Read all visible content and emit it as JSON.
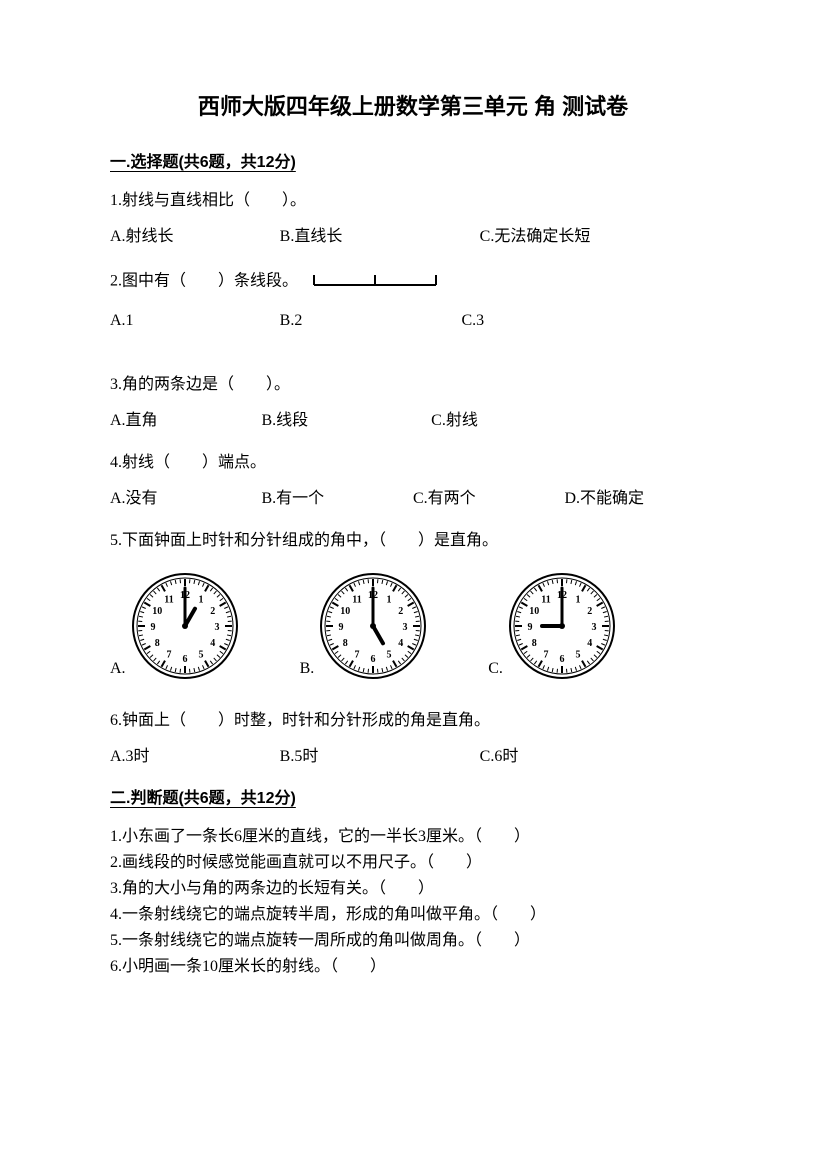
{
  "title": "西师大版四年级上册数学第三单元 角 测试卷",
  "section1": {
    "heading": "一.选择题(共6题，共12分)",
    "q1": {
      "stem": "1.射线与直线相比（　　）。",
      "a": "A.射线长",
      "b": "B.直线长",
      "c": "C.无法确定长短"
    },
    "q2": {
      "stem_prefix": "2.图中有（　　）条线段。",
      "a": "A.1",
      "b": "B.2",
      "c": "C.3",
      "diagram": {
        "width": 130,
        "height": 22,
        "stroke": "#000000",
        "stroke_width": 2,
        "tick_h": 10
      }
    },
    "q3": {
      "stem": "3.角的两条边是（　　）。",
      "a": "A.直角",
      "b": "B.线段",
      "c": "C.射线"
    },
    "q4": {
      "stem": "4.射线（　　）端点。",
      "a": "A.没有",
      "b": "B.有一个",
      "c": "C.有两个",
      "d": "D.不能确定"
    },
    "q5": {
      "stem": "5.下面钟面上时针和分针组成的角中，（　　）是直角。",
      "a": "A.",
      "b": "B.",
      "c": "C.",
      "clocks": {
        "size": 110,
        "face_color": "#ffffff",
        "stroke": "#000000",
        "stroke_width": 2,
        "num_fontsize": 10,
        "a_time": {
          "h": 1,
          "m": 0
        },
        "b_time": {
          "h": 5,
          "m": 0
        },
        "c_time": {
          "h": 9,
          "m": 0
        }
      }
    },
    "q6": {
      "stem": "6.钟面上（　　）时整，时针和分针形成的角是直角。",
      "a": "A.3时",
      "b": "B.5时",
      "c": "C.6时"
    }
  },
  "section2": {
    "heading": "二.判断题(共6题，共12分)",
    "j1": "1.小东画了一条长6厘米的直线，它的一半长3厘米。（　　）",
    "j2": "2.画线段的时候感觉能画直就可以不用尺子。（　　）",
    "j3": "3.角的大小与角的两条边的长短有关。（　　）",
    "j4": "4.一条射线绕它的端点旋转半周，形成的角叫做平角。（　　）",
    "j5": "5.一条射线绕它的端点旋转一周所成的角叫做周角。（　　）",
    "j6": "6.小明画一条10厘米长的射线。（　　）"
  }
}
